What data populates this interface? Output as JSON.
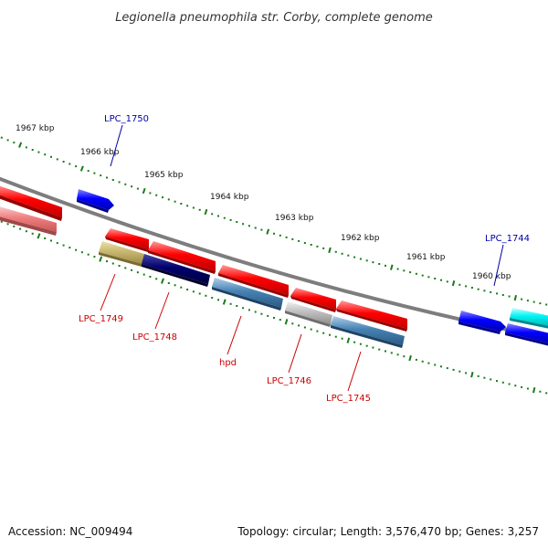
{
  "title": "Legionella pneumophila str. Corby, complete genome",
  "footer": {
    "accession": "Accession: NC_009494",
    "summary": "Topology: circular; Length: 3,576,470 bp; Genes: 3,257"
  },
  "colors": {
    "backbone": "#7f7f7f",
    "ticks": "#1a7a1a",
    "forward_label": "#0000aa",
    "reverse_label": "#cc0000",
    "red_gene": "#ff0000",
    "pink_gene": "#f07f7f",
    "blue_gene": "#0000ff",
    "cyan_gene": "#00ffff",
    "olive_gene": "#c8b870",
    "navy_gene": "#000066",
    "steel_gene": "#4682b4",
    "grey_gene": "#b8b8b8"
  },
  "scale_labels": [
    "1967 kbp",
    "1966 kbp",
    "1965 kbp",
    "1964 kbp",
    "1963 kbp",
    "1962 kbp",
    "1961 kbp",
    "1960 kbp"
  ],
  "gene_labels": {
    "forward": [
      "LPC_1750",
      "LPC_1744"
    ],
    "reverse": [
      "LPC_1749",
      "LPC_1748",
      "hpd",
      "LPC_1746",
      "LPC_1745"
    ]
  }
}
